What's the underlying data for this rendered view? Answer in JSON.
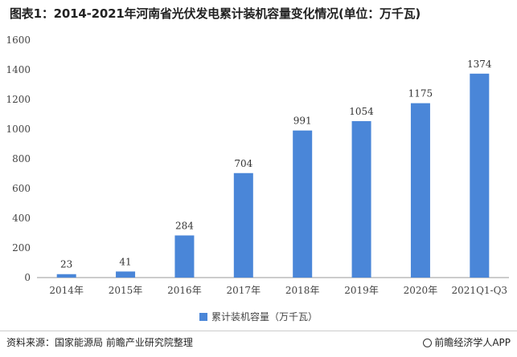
{
  "title": "图表1：2014-2021年河南省光伏发电累计装机容量变化情况(单位：万千瓦)",
  "legend": {
    "label": "累计装机容量（万千瓦）"
  },
  "footer": {
    "source": "资料来源：国家能源局 前瞻产业研究院整理",
    "brand": "前瞻经济学人APP"
  },
  "colors": {
    "bar": "#4a86d8",
    "axis": "#999999"
  },
  "chart_data": {
    "type": "bar",
    "categories": [
      "2014年",
      "2015年",
      "2016年",
      "2017年",
      "2018年",
      "2019年",
      "2020年",
      "2021Q1-Q3"
    ],
    "series": [
      {
        "name": "累计装机容量（万千瓦）",
        "values": [
          23,
          41,
          284,
          704,
          991,
          1054,
          1175,
          1374
        ]
      }
    ],
    "yticks": [
      0,
      200,
      400,
      600,
      800,
      1000,
      1200,
      1400,
      1600
    ],
    "ylim": [
      0,
      1600
    ],
    "grid": false,
    "legend_position": "bottom"
  }
}
